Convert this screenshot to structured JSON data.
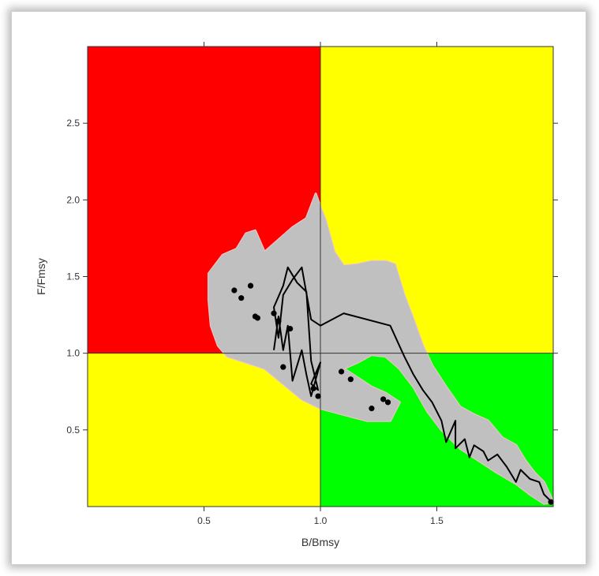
{
  "chart_data": {
    "type": "scatter",
    "title": "",
    "xlabel": "B/Bmsy",
    "ylabel": "F/Fmsy",
    "xlim": [
      0.0,
      2.0
    ],
    "ylim": [
      0.0,
      3.0
    ],
    "x_ticks": [
      {
        "value": 0.5,
        "label": "0.5"
      },
      {
        "value": 1.0,
        "label": "1.0"
      },
      {
        "value": 1.5,
        "label": "1.5"
      }
    ],
    "y_ticks": [
      {
        "value": 0.5,
        "label": "0.5"
      },
      {
        "value": 1.0,
        "label": "1.0"
      },
      {
        "value": 1.5,
        "label": "1.5"
      },
      {
        "value": 2.0,
        "label": "2.0"
      },
      {
        "value": 2.5,
        "label": "2.5"
      }
    ],
    "reference_lines": {
      "x": 1.0,
      "y": 1.0
    },
    "quadrants": [
      {
        "name": "overfished-overfishing",
        "x": [
          0.0,
          1.0
        ],
        "y": [
          1.0,
          3.0
        ],
        "color": "#ff0000"
      },
      {
        "name": "healthy-overfishing",
        "x": [
          1.0,
          2.0
        ],
        "y": [
          1.0,
          3.0
        ],
        "color": "#ffff00"
      },
      {
        "name": "overfished-no-overfishing",
        "x": [
          0.0,
          1.0
        ],
        "y": [
          0.0,
          1.0
        ],
        "color": "#ffff00"
      },
      {
        "name": "healthy-no-overfishing",
        "x": [
          1.0,
          2.0
        ],
        "y": [
          0.0,
          1.0
        ],
        "color": "#00ff00"
      }
    ],
    "uncertainty_region": {
      "color": "#c0c0c0",
      "outline_color": "#f5c6c6",
      "points": [
        [
          0.52,
          1.52
        ],
        [
          0.58,
          1.64
        ],
        [
          0.64,
          1.68
        ],
        [
          0.68,
          1.78
        ],
        [
          0.72,
          1.8
        ],
        [
          0.76,
          1.66
        ],
        [
          0.82,
          1.74
        ],
        [
          0.88,
          1.82
        ],
        [
          0.94,
          1.88
        ],
        [
          0.98,
          2.04
        ],
        [
          1.0,
          1.95
        ],
        [
          1.02,
          1.88
        ],
        [
          1.06,
          1.66
        ],
        [
          1.1,
          1.57
        ],
        [
          1.16,
          1.58
        ],
        [
          1.22,
          1.6
        ],
        [
          1.28,
          1.6
        ],
        [
          1.32,
          1.58
        ],
        [
          1.36,
          1.38
        ],
        [
          1.4,
          1.22
        ],
        [
          1.44,
          1.05
        ],
        [
          1.48,
          0.92
        ],
        [
          1.54,
          0.78
        ],
        [
          1.6,
          0.65
        ],
        [
          1.66,
          0.6
        ],
        [
          1.72,
          0.56
        ],
        [
          1.78,
          0.45
        ],
        [
          1.84,
          0.4
        ],
        [
          1.88,
          0.3
        ],
        [
          1.92,
          0.22
        ],
        [
          1.96,
          0.16
        ],
        [
          2.0,
          0.03
        ],
        [
          1.96,
          0.02
        ],
        [
          1.9,
          0.08
        ],
        [
          1.84,
          0.15
        ],
        [
          1.76,
          0.22
        ],
        [
          1.68,
          0.3
        ],
        [
          1.6,
          0.38
        ],
        [
          1.52,
          0.5
        ],
        [
          1.46,
          0.62
        ],
        [
          1.4,
          0.78
        ],
        [
          1.34,
          0.9
        ],
        [
          1.28,
          0.98
        ],
        [
          1.22,
          0.99
        ],
        [
          1.16,
          0.94
        ],
        [
          1.1,
          0.9
        ],
        [
          1.16,
          0.84
        ],
        [
          1.22,
          0.78
        ],
        [
          1.28,
          0.74
        ],
        [
          1.34,
          0.68
        ],
        [
          1.3,
          0.56
        ],
        [
          1.2,
          0.56
        ],
        [
          1.1,
          0.6
        ],
        [
          1.0,
          0.64
        ],
        [
          0.92,
          0.7
        ],
        [
          0.84,
          0.8
        ],
        [
          0.76,
          0.9
        ],
        [
          0.68,
          0.94
        ],
        [
          0.6,
          0.98
        ],
        [
          0.56,
          1.05
        ],
        [
          0.53,
          1.18
        ],
        [
          0.52,
          1.35
        ]
      ]
    },
    "series": [
      {
        "kind": "line",
        "color": "#000000",
        "points": [
          [
            0.8,
            1.02
          ],
          [
            0.82,
            1.24
          ],
          [
            0.84,
            1.02
          ],
          [
            0.86,
            1.18
          ],
          [
            0.88,
            0.82
          ],
          [
            0.92,
            1.02
          ],
          [
            0.94,
            0.86
          ],
          [
            0.96,
            0.72
          ],
          [
            1.0,
            0.94
          ],
          [
            0.96,
            0.8
          ],
          [
            0.99,
            0.76
          ],
          [
            0.96,
            0.95
          ],
          [
            0.94,
            1.4
          ],
          [
            0.9,
            1.46
          ],
          [
            0.86,
            1.56
          ],
          [
            0.84,
            1.44
          ],
          [
            0.8,
            1.3
          ],
          [
            0.82,
            1.1
          ],
          [
            0.84,
            1.38
          ],
          [
            0.88,
            1.48
          ],
          [
            0.92,
            1.56
          ],
          [
            0.96,
            1.22
          ],
          [
            1.0,
            1.18
          ],
          [
            1.1,
            1.26
          ],
          [
            1.3,
            1.18
          ],
          [
            1.36,
            0.98
          ],
          [
            1.4,
            0.86
          ],
          [
            1.44,
            0.76
          ],
          [
            1.48,
            0.68
          ],
          [
            1.52,
            0.56
          ],
          [
            1.54,
            0.42
          ],
          [
            1.58,
            0.56
          ],
          [
            1.58,
            0.38
          ],
          [
            1.62,
            0.44
          ],
          [
            1.64,
            0.32
          ],
          [
            1.66,
            0.4
          ],
          [
            1.7,
            0.36
          ],
          [
            1.72,
            0.3
          ],
          [
            1.76,
            0.34
          ],
          [
            1.8,
            0.26
          ],
          [
            1.84,
            0.16
          ],
          [
            1.86,
            0.24
          ],
          [
            1.9,
            0.18
          ],
          [
            1.94,
            0.16
          ],
          [
            1.96,
            0.08
          ],
          [
            1.98,
            0.05
          ],
          [
            2.0,
            0.02
          ]
        ]
      },
      {
        "kind": "points",
        "color": "#000000",
        "points": [
          [
            0.63,
            1.41
          ],
          [
            0.66,
            1.36
          ],
          [
            0.7,
            1.44
          ],
          [
            0.72,
            1.24
          ],
          [
            0.73,
            1.23
          ],
          [
            0.8,
            1.26
          ],
          [
            0.82,
            1.21
          ],
          [
            0.87,
            1.16
          ],
          [
            0.84,
            0.91
          ],
          [
            0.97,
            0.77
          ],
          [
            0.99,
            0.72
          ],
          [
            1.09,
            0.88
          ],
          [
            1.13,
            0.83
          ],
          [
            1.22,
            0.64
          ],
          [
            1.27,
            0.7
          ],
          [
            1.29,
            0.68
          ],
          [
            1.99,
            0.03
          ]
        ]
      }
    ]
  }
}
